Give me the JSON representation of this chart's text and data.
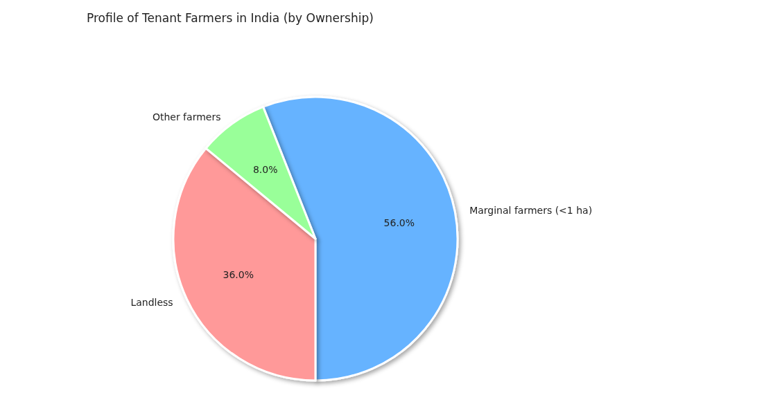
{
  "chart_data": {
    "type": "pie",
    "title": "Profile of Tenant Farmers in India (by Ownership)",
    "categories": [
      "Marginal farmers (<1 ha)",
      "Landless",
      "Other farmers"
    ],
    "values": [
      56,
      36,
      8
    ],
    "colors": [
      "#66b3ff",
      "#ff9999",
      "#99ff99"
    ],
    "value_labels": [
      "56.0%",
      "36.0%",
      "8.0%"
    ],
    "legend": false
  }
}
